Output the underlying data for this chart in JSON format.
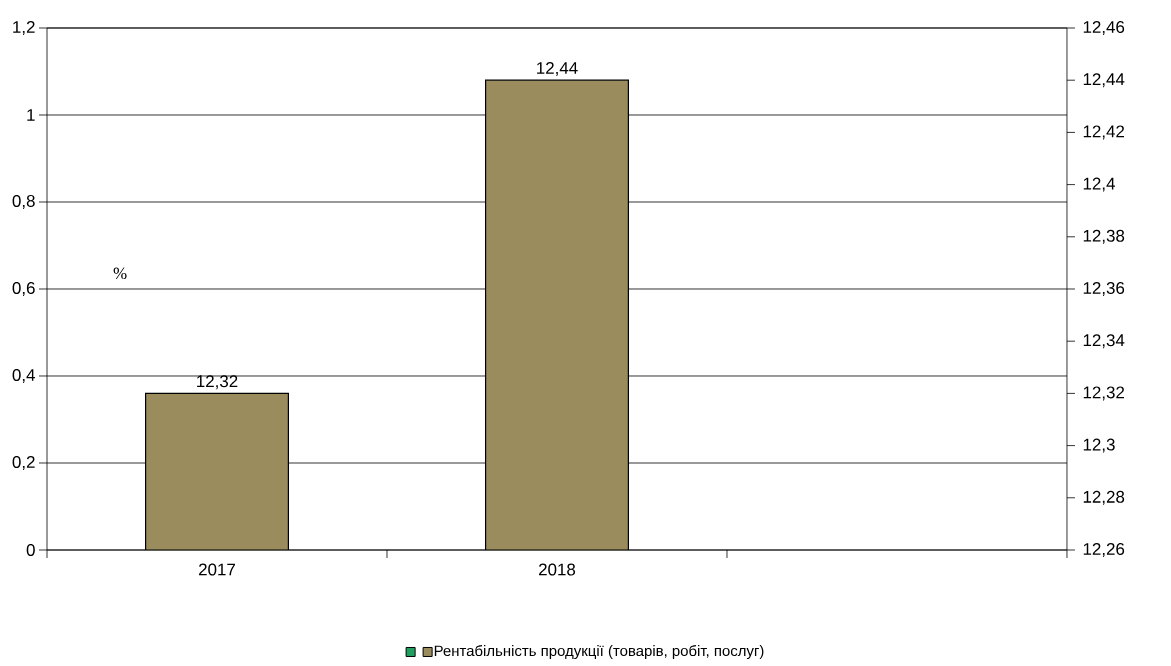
{
  "chart_data": {
    "type": "bar",
    "categories": [
      "2017",
      "2018",
      null
    ],
    "series": [
      {
        "color": "#20a060",
        "values": [
          null,
          null,
          null
        ],
        "axis": "y"
      },
      {
        "name": "Рентабільність продукції (товарів, робіт, послуг)",
        "color": "#9b8c5e",
        "values": [
          12.32,
          12.44,
          null
        ],
        "axis": "y2",
        "value_labels": [
          "12,32",
          "12,44",
          null
        ]
      }
    ],
    "ylabel": "%",
    "ylim": [
      0,
      1.2
    ],
    "yticks": [
      0,
      {
        "value": 0.2,
        "label": "0,2"
      },
      {
        "value": 0.4,
        "label": "0,4"
      },
      {
        "value": 0.6,
        "label": "0,6"
      },
      {
        "value": 0.8,
        "label": "0,8"
      },
      1,
      {
        "value": 1.2,
        "label": "1,2"
      }
    ],
    "y2lim": [
      12.26,
      12.46
    ],
    "y2ticks": [
      {
        "value": 12.26,
        "label": "12,26"
      },
      {
        "value": 12.28,
        "label": "12,28"
      },
      {
        "value": 12.3,
        "label": "12,3"
      },
      {
        "value": 12.32,
        "label": "12,32"
      },
      {
        "value": 12.34,
        "label": "12,34"
      },
      {
        "value": 12.36,
        "label": "12,36"
      },
      {
        "value": 12.38,
        "label": "12,38"
      },
      {
        "value": 12.4,
        "label": "12,4"
      },
      {
        "value": 12.42,
        "label": "12,42"
      },
      {
        "value": 12.44,
        "label": "12,44"
      },
      {
        "value": 12.46,
        "label": "12,46"
      }
    ],
    "grid": "y",
    "legend": "bottom"
  }
}
